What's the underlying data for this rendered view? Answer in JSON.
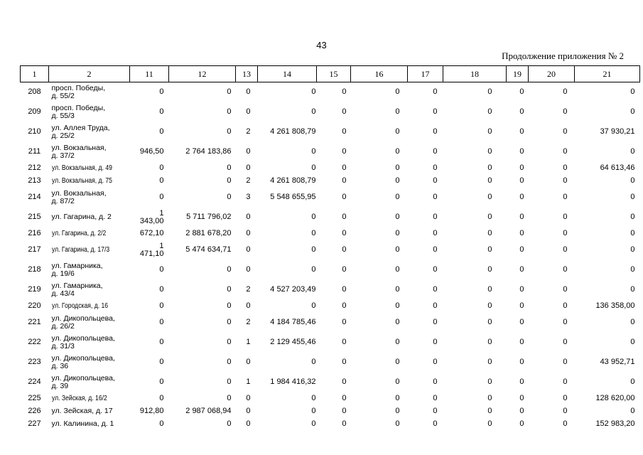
{
  "page": {
    "number": "43",
    "appendix_note": "Продолжение приложения № 2"
  },
  "table": {
    "columns": [
      "1",
      "2",
      "11",
      "12",
      "13",
      "14",
      "15",
      "16",
      "17",
      "18",
      "19",
      "20",
      "21"
    ],
    "rows": [
      {
        "num": "208",
        "address": "просп. Победы,\nд. 55/2",
        "condensed": false,
        "values": [
          "0",
          "0",
          "0",
          "0",
          "0",
          "0",
          "0",
          "0",
          "0",
          "0",
          "0"
        ]
      },
      {
        "num": "209",
        "address": "просп. Победы,\nд. 55/3",
        "condensed": false,
        "values": [
          "0",
          "0",
          "0",
          "0",
          "0",
          "0",
          "0",
          "0",
          "0",
          "0",
          "0"
        ]
      },
      {
        "num": "210",
        "address": "ул. Аллея Труда,\nд. 25/2",
        "condensed": false,
        "values": [
          "0",
          "0",
          "2",
          "4 261 808,79",
          "0",
          "0",
          "0",
          "0",
          "0",
          "0",
          "37 930,21"
        ]
      },
      {
        "num": "211",
        "address": "ул. Вокзальная,\nд. 37/2",
        "condensed": false,
        "values": [
          "946,50",
          "2 764 183,86",
          "0",
          "0",
          "0",
          "0",
          "0",
          "0",
          "0",
          "0",
          "0"
        ]
      },
      {
        "num": "212",
        "address": "ул. Вокзальная, д. 49",
        "condensed": true,
        "values": [
          "0",
          "0",
          "0",
          "0",
          "0",
          "0",
          "0",
          "0",
          "0",
          "0",
          "64 613,46"
        ]
      },
      {
        "num": "213",
        "address": "ул. Вокзальная, д. 75",
        "condensed": true,
        "values": [
          "0",
          "0",
          "2",
          "4 261 808,79",
          "0",
          "0",
          "0",
          "0",
          "0",
          "0",
          "0"
        ]
      },
      {
        "num": "214",
        "address": "ул. Вокзальная,\nд. 87/2",
        "condensed": false,
        "values": [
          "0",
          "0",
          "3",
          "5 548 655,95",
          "0",
          "0",
          "0",
          "0",
          "0",
          "0",
          "0"
        ]
      },
      {
        "num": "215",
        "address": "ул. Гагарина, д. 2",
        "condensed": false,
        "values": [
          "1\n343,00",
          "5 711 796,02",
          "0",
          "0",
          "0",
          "0",
          "0",
          "0",
          "0",
          "0",
          "0"
        ]
      },
      {
        "num": "216",
        "address": "ул. Гагарина, д. 2/2",
        "condensed": true,
        "values": [
          "672,10",
          "2 881 678,20",
          "0",
          "0",
          "0",
          "0",
          "0",
          "0",
          "0",
          "0",
          "0"
        ]
      },
      {
        "num": "217",
        "address": "ул. Гагарина, д. 17/3",
        "condensed": true,
        "values": [
          "1\n471,10",
          "5 474 634,71",
          "0",
          "0",
          "0",
          "0",
          "0",
          "0",
          "0",
          "0",
          "0"
        ]
      },
      {
        "num": "218",
        "address": "ул. Гамарника,\nд. 19/6",
        "condensed": false,
        "values": [
          "0",
          "0",
          "0",
          "0",
          "0",
          "0",
          "0",
          "0",
          "0",
          "0",
          "0"
        ]
      },
      {
        "num": "219",
        "address": "ул. Гамарника,\nд. 43/4",
        "condensed": false,
        "values": [
          "0",
          "0",
          "2",
          "4 527 203,49",
          "0",
          "0",
          "0",
          "0",
          "0",
          "0",
          "0"
        ]
      },
      {
        "num": "220",
        "address": "ул. Городская, д. 16",
        "condensed": true,
        "values": [
          "0",
          "0",
          "0",
          "0",
          "0",
          "0",
          "0",
          "0",
          "0",
          "0",
          "136 358,00"
        ]
      },
      {
        "num": "221",
        "address": "ул. Дикопольцева,\nд. 26/2",
        "condensed": false,
        "values": [
          "0",
          "0",
          "2",
          "4 184 785,46",
          "0",
          "0",
          "0",
          "0",
          "0",
          "0",
          "0"
        ]
      },
      {
        "num": "222",
        "address": "ул. Дикопольцева,\nд. 31/3",
        "condensed": false,
        "values": [
          "0",
          "0",
          "1",
          "2 129 455,46",
          "0",
          "0",
          "0",
          "0",
          "0",
          "0",
          "0"
        ]
      },
      {
        "num": "223",
        "address": "ул. Дикопольцева,\nд. 36",
        "condensed": false,
        "values": [
          "0",
          "0",
          "0",
          "0",
          "0",
          "0",
          "0",
          "0",
          "0",
          "0",
          "43 952,71"
        ]
      },
      {
        "num": "224",
        "address": "ул. Дикопольцева,\nд. 39",
        "condensed": false,
        "values": [
          "0",
          "0",
          "1",
          "1 984 416,32",
          "0",
          "0",
          "0",
          "0",
          "0",
          "0",
          "0"
        ]
      },
      {
        "num": "225",
        "address": "ул. Зейская, д. 16/2",
        "condensed": true,
        "values": [
          "0",
          "0",
          "0",
          "0",
          "0",
          "0",
          "0",
          "0",
          "0",
          "0",
          "128 620,00"
        ]
      },
      {
        "num": "226",
        "address": "ул. Зейская, д. 17",
        "condensed": false,
        "values": [
          "912,80",
          "2 987 068,94",
          "0",
          "0",
          "0",
          "0",
          "0",
          "0",
          "0",
          "0",
          "0"
        ]
      },
      {
        "num": "227",
        "address": "ул. Калинина, д. 1",
        "condensed": false,
        "values": [
          "0",
          "0",
          "0",
          "0",
          "0",
          "0",
          "0",
          "0",
          "0",
          "0",
          "152 983,20"
        ]
      }
    ]
  }
}
